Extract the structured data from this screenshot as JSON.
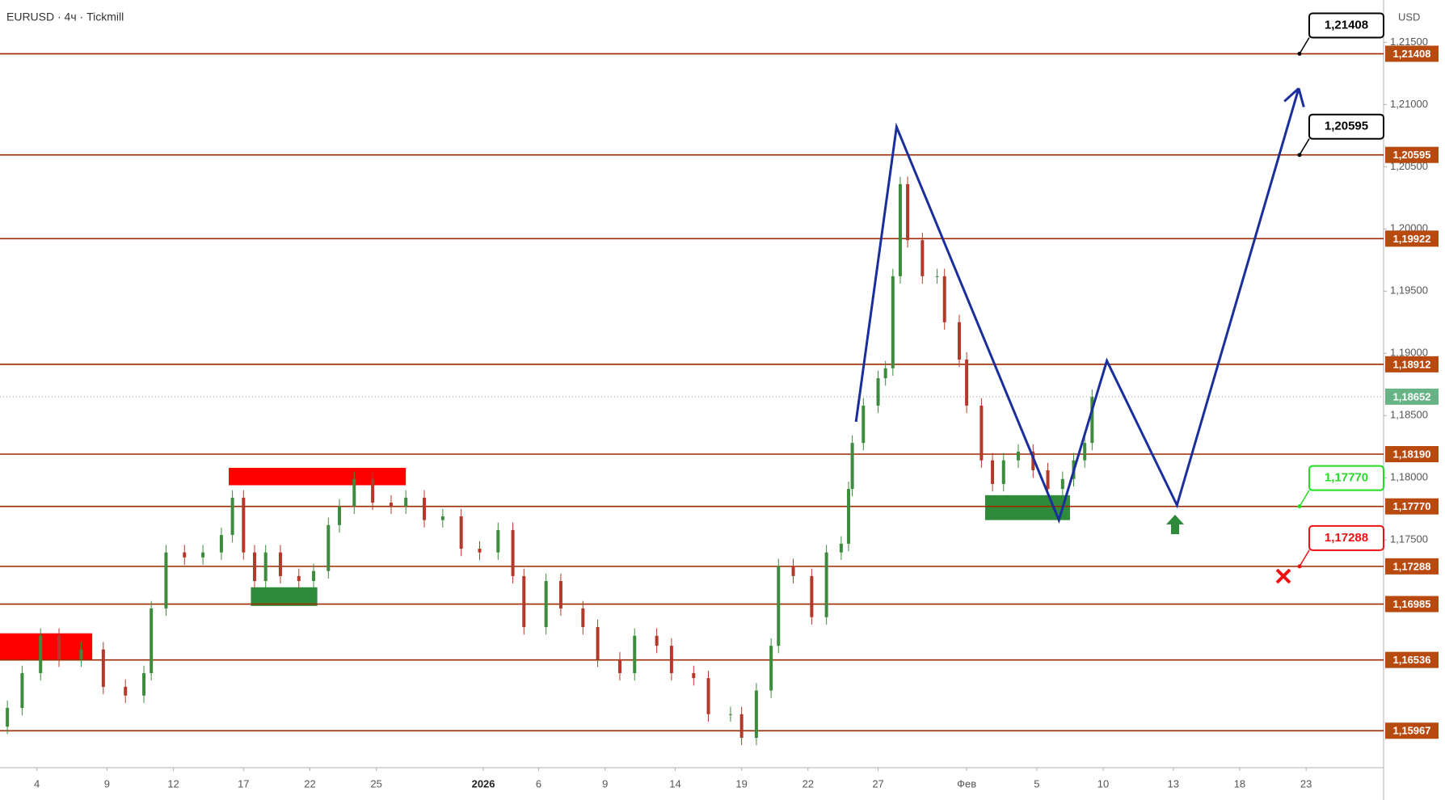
{
  "chart_data": {
    "type": "candlestick",
    "title": "EURUSD · 4ч · Tickmill",
    "currency": "USD",
    "up_color": "#3d8b3d",
    "down_color": "#b33a2a",
    "x": [
      2,
      6,
      11,
      16,
      22,
      28,
      34,
      39,
      41,
      45,
      50,
      55,
      60,
      63,
      66,
      69,
      72,
      76,
      81,
      85,
      89,
      92,
      96,
      101,
      106,
      110,
      115,
      120,
      125,
      130,
      135,
      139,
      142,
      148,
      152,
      158,
      162,
      168,
      172,
      178,
      182,
      188,
      192,
      198,
      201,
      205,
      209,
      211,
      215,
      220,
      224,
      228,
      230,
      231,
      234,
      238,
      240,
      242,
      244,
      246,
      250,
      254,
      256,
      260,
      262,
      266,
      269,
      272,
      276,
      280,
      284,
      288,
      291,
      294,
      296
    ],
    "open": [
      1.16,
      1.1615,
      1.1643,
      1.1673,
      1.1654,
      1.1662,
      1.1632,
      1.1625,
      1.1643,
      1.1695,
      1.174,
      1.1736,
      1.174,
      1.1754,
      1.1784,
      1.174,
      1.1717,
      1.174,
      1.1721,
      1.1717,
      1.1725,
      1.1762,
      1.1777,
      1.1799,
      1.178,
      1.1777,
      1.1784,
      1.1766,
      1.1769,
      1.1743,
      1.174,
      1.1758,
      1.1721,
      1.168,
      1.1717,
      1.1695,
      1.168,
      1.1654,
      1.1643,
      1.1673,
      1.1665,
      1.1643,
      1.1639,
      1.161,
      1.161,
      1.1591,
      1.1629,
      1.1665,
      1.1729,
      1.1721,
      1.1688,
      1.174,
      1.1747,
      1.1791,
      1.1828,
      1.1858,
      1.188,
      1.1888,
      1.1962,
      1.2036,
      1.1991,
      1.1962,
      1.1962,
      1.1925,
      1.1895,
      1.1858,
      1.1814,
      1.1795,
      1.1814,
      1.1821,
      1.1806,
      1.1791,
      1.1799,
      1.1814,
      1.1828
    ],
    "high": [
      1.1621,
      1.1649,
      1.1679,
      1.1679,
      1.1668,
      1.1668,
      1.1638,
      1.1649,
      1.1701,
      1.1746,
      1.1746,
      1.1746,
      1.176,
      1.179,
      1.179,
      1.1746,
      1.1746,
      1.1746,
      1.1727,
      1.1731,
      1.1768,
      1.1783,
      1.1805,
      1.1805,
      1.1786,
      1.179,
      1.179,
      1.1775,
      1.1775,
      1.1749,
      1.1764,
      1.1764,
      1.1727,
      1.1723,
      1.1723,
      1.1701,
      1.1686,
      1.166,
      1.1679,
      1.1679,
      1.1671,
      1.1649,
      1.1645,
      1.1616,
      1.1616,
      1.1635,
      1.1671,
      1.1735,
      1.1735,
      1.1727,
      1.1746,
      1.1753,
      1.1797,
      1.1834,
      1.1864,
      1.1886,
      1.1894,
      1.1968,
      1.2042,
      1.2042,
      1.1997,
      1.1968,
      1.1968,
      1.1931,
      1.1901,
      1.1864,
      1.182,
      1.182,
      1.1827,
      1.1827,
      1.1812,
      1.1805,
      1.182,
      1.1834,
      1.1871
    ],
    "low": [
      1.1594,
      1.1609,
      1.1637,
      1.1648,
      1.1648,
      1.1626,
      1.1619,
      1.1619,
      1.1637,
      1.1689,
      1.173,
      1.173,
      1.1734,
      1.1748,
      1.1734,
      1.1711,
      1.1711,
      1.1715,
      1.1711,
      1.1711,
      1.1719,
      1.1756,
      1.1771,
      1.1774,
      1.1771,
      1.1771,
      1.176,
      1.176,
      1.1737,
      1.1734,
      1.1734,
      1.1715,
      1.1674,
      1.1674,
      1.1689,
      1.1674,
      1.1648,
      1.1637,
      1.1637,
      1.1659,
      1.1637,
      1.1633,
      1.1604,
      1.1604,
      1.1585,
      1.1585,
      1.1623,
      1.1659,
      1.1715,
      1.1682,
      1.1682,
      1.1734,
      1.1741,
      1.1785,
      1.1822,
      1.1852,
      1.1874,
      1.1882,
      1.1956,
      1.1985,
      1.1956,
      1.1956,
      1.1919,
      1.1889,
      1.1852,
      1.1808,
      1.1789,
      1.1789,
      1.1808,
      1.18,
      1.1785,
      1.1785,
      1.1793,
      1.1808,
      1.1822
    ],
    "close": [
      1.1615,
      1.1643,
      1.1673,
      1.1654,
      1.1662,
      1.1632,
      1.1625,
      1.1643,
      1.1695,
      1.174,
      1.1736,
      1.174,
      1.1754,
      1.1784,
      1.174,
      1.1717,
      1.174,
      1.1721,
      1.1717,
      1.1725,
      1.1762,
      1.1777,
      1.1799,
      1.178,
      1.1777,
      1.1784,
      1.1766,
      1.1769,
      1.1743,
      1.174,
      1.1758,
      1.1721,
      1.168,
      1.1717,
      1.1695,
      1.168,
      1.1654,
      1.1643,
      1.1673,
      1.1665,
      1.1643,
      1.1639,
      1.161,
      1.161,
      1.1591,
      1.1629,
      1.1665,
      1.1729,
      1.1721,
      1.1688,
      1.174,
      1.1747,
      1.1791,
      1.1828,
      1.1858,
      1.188,
      1.1888,
      1.1962,
      1.2036,
      1.1991,
      1.1962,
      1.1962,
      1.1925,
      1.1895,
      1.1858,
      1.1814,
      1.1795,
      1.1814,
      1.1821,
      1.1806,
      1.1791,
      1.1799,
      1.1814,
      1.1828,
      1.1865
    ],
    "xlim": [
      0,
      375
    ],
    "xticks": [
      {
        "value": 10,
        "label": "4"
      },
      {
        "value": 29,
        "label": "9"
      },
      {
        "value": 47,
        "label": "12"
      },
      {
        "value": 66,
        "label": "17"
      },
      {
        "value": 84,
        "label": "22"
      },
      {
        "value": 102,
        "label": "25"
      },
      {
        "value": 131,
        "label": "2026",
        "bold": true
      },
      {
        "value": 146,
        "label": "6"
      },
      {
        "value": 164,
        "label": "9"
      },
      {
        "value": 183,
        "label": "14"
      },
      {
        "value": 201,
        "label": "19"
      },
      {
        "value": 219,
        "label": "22"
      },
      {
        "value": 238,
        "label": "27"
      },
      {
        "value": 262,
        "label": "Фев"
      },
      {
        "value": 281,
        "label": "5"
      },
      {
        "value": 299,
        "label": "10"
      },
      {
        "value": 318,
        "label": "13"
      },
      {
        "value": 336,
        "label": "18"
      },
      {
        "value": 354,
        "label": "23"
      }
    ],
    "ylim": [
      1.1567,
      1.2184
    ],
    "yticks": [
      {
        "value": 1.215,
        "label": "1,21500"
      },
      {
        "value": 1.21,
        "label": "1,21000"
      },
      {
        "value": 1.205,
        "label": "1,20500"
      },
      {
        "value": 1.2,
        "label": "1,20000"
      },
      {
        "value": 1.195,
        "label": "1,19500"
      },
      {
        "value": 1.19,
        "label": "1,19000"
      },
      {
        "value": 1.185,
        "label": "1,18500"
      },
      {
        "value": 1.18,
        "label": "1,18000"
      },
      {
        "value": 1.175,
        "label": "1,17500"
      }
    ],
    "level_color": "#9c2a00",
    "level_label_color": "#b84a10",
    "levels": [
      {
        "value": 1.21408,
        "label": "1,21408"
      },
      {
        "value": 1.20595,
        "label": "1,20595"
      },
      {
        "value": 1.19922,
        "label": "1,19922"
      },
      {
        "value": 1.18912,
        "label": "1,18912"
      },
      {
        "value": 1.1819,
        "label": "1,18190"
      },
      {
        "value": 1.1777,
        "label": "1,17770"
      },
      {
        "value": 1.17288,
        "label": "1,17288"
      },
      {
        "value": 1.16985,
        "label": "1,16985"
      },
      {
        "value": 1.16536,
        "label": "1,16536"
      },
      {
        "value": 1.15967,
        "label": "1,15967"
      }
    ],
    "current": {
      "value": 1.18652,
      "label": "1,18652",
      "color": "#66b386"
    },
    "callouts": [
      {
        "value": 1.21408,
        "label": "1,21408",
        "color": "#000000"
      },
      {
        "value": 1.20595,
        "label": "1,20595",
        "color": "#000000"
      },
      {
        "value": 1.1777,
        "label": "1,17770",
        "color": "#22dd22"
      },
      {
        "value": 1.17288,
        "label": "1,17288",
        "color": "#ee1111"
      }
    ],
    "projection": {
      "color": "#1a2f9c",
      "x": [
        232,
        243,
        287,
        300,
        319,
        352
      ],
      "values": [
        1.1845,
        1.2082,
        1.1766,
        1.1894,
        1.1778,
        1.2113
      ]
    },
    "zones": [
      {
        "color": "#ff0000",
        "x": [
          0,
          25
        ],
        "y": [
          1.1654,
          1.1675
        ]
      },
      {
        "color": "#ff0000",
        "x": [
          62,
          110
        ],
        "y": [
          1.1794,
          1.1808
        ]
      },
      {
        "color": "#2e8b3a",
        "x": [
          68,
          86
        ],
        "y": [
          1.1697,
          1.1712
        ]
      },
      {
        "color": "#2e8b3a",
        "x": [
          267,
          290
        ],
        "y": [
          1.1766,
          1.1786
        ]
      }
    ]
  }
}
